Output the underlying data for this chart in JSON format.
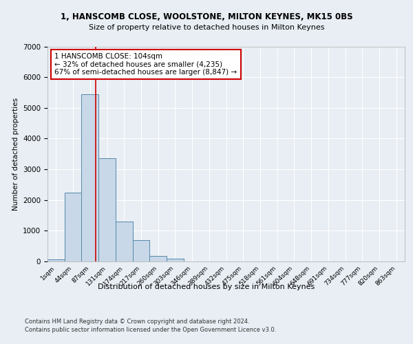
{
  "title1": "1, HANSCOMB CLOSE, WOOLSTONE, MILTON KEYNES, MK15 0BS",
  "title2": "Size of property relative to detached houses in Milton Keynes",
  "xlabel": "Distribution of detached houses by size in Milton Keynes",
  "ylabel": "Number of detached properties",
  "footer1": "Contains HM Land Registry data © Crown copyright and database right 2024.",
  "footer2": "Contains public sector information licensed under the Open Government Licence v3.0.",
  "bar_labels": [
    "1sqm",
    "44sqm",
    "87sqm",
    "131sqm",
    "174sqm",
    "217sqm",
    "260sqm",
    "303sqm",
    "346sqm",
    "389sqm",
    "432sqm",
    "475sqm",
    "518sqm",
    "561sqm",
    "604sqm",
    "648sqm",
    "691sqm",
    "734sqm",
    "777sqm",
    "820sqm",
    "863sqm"
  ],
  "bar_values": [
    60,
    2250,
    5450,
    3350,
    1300,
    700,
    170,
    90,
    0,
    0,
    0,
    0,
    0,
    0,
    0,
    0,
    0,
    0,
    0,
    0,
    0
  ],
  "bar_color": "#c8d8e8",
  "bar_edge_color": "#5588aa",
  "ylim": [
    0,
    7000
  ],
  "yticks": [
    0,
    1000,
    2000,
    3000,
    4000,
    5000,
    6000,
    7000
  ],
  "property_line_x": 2.35,
  "annotation_text": "1 HANSCOMB CLOSE: 104sqm\n← 32% of detached houses are smaller (4,235)\n67% of semi-detached houses are larger (8,847) →",
  "annotation_box_color": "#ffffff",
  "annotation_box_edge": "#cc0000",
  "vline_color": "#cc0000",
  "bg_color": "#e8eef4",
  "plot_bg_color": "#e8eef4",
  "grid_color": "#ffffff"
}
